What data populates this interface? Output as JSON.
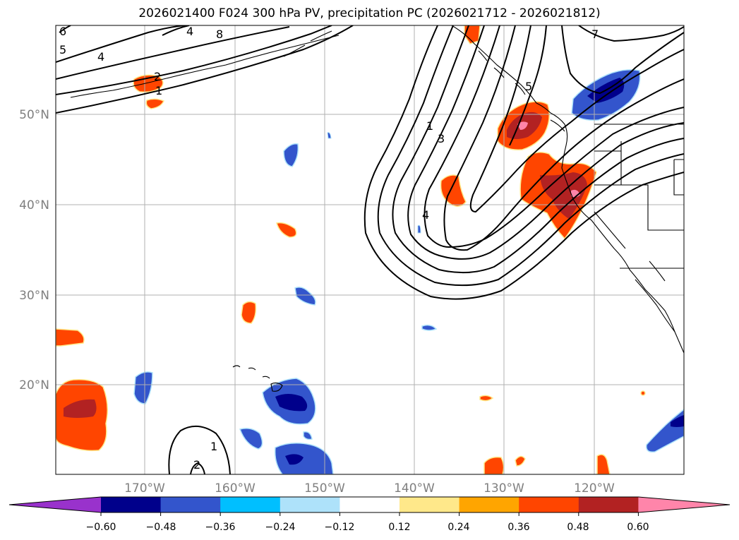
{
  "title": "2026021400 F024 300 hPa PV, precipitation PC (2026021712 - 2026021812)",
  "lon_labels": [
    "170°W",
    "160°W",
    "150°W",
    "140°W",
    "130°W",
    "120°W"
  ],
  "lat_labels": [
    "50°N",
    "40°N",
    "30°N",
    "20°N"
  ],
  "colorbar": {
    "ticks": [
      "−0.60",
      "−0.48",
      "−0.36",
      "−0.24",
      "−0.12",
      "0.12",
      "0.24",
      "0.36",
      "0.48",
      "0.60"
    ],
    "colors": [
      "#9932cc",
      "#00008b",
      "#3355cc",
      "#00bfff",
      "#aee2fa",
      "#ffffff",
      "#ffe88a",
      "#ffa500",
      "#ff4500",
      "#b22222",
      "#ff85aa"
    ]
  },
  "contour_labels": [
    "6",
    "5",
    "4",
    "4",
    "8",
    "2",
    "1",
    "1",
    "3",
    "4",
    "5",
    "7",
    "1",
    "2"
  ],
  "legend_colors": {
    "neg_light": "#aee2fa",
    "neg_mid": "#3355cc",
    "neg_dark": "#00008b",
    "pos_light": "#ffa500",
    "pos_mid": "#ff4500",
    "pos_dark": "#b22222",
    "pos_max": "#ff85aa",
    "contour": "#000000",
    "coast": "#000000",
    "grid": "#b0b0b0"
  }
}
